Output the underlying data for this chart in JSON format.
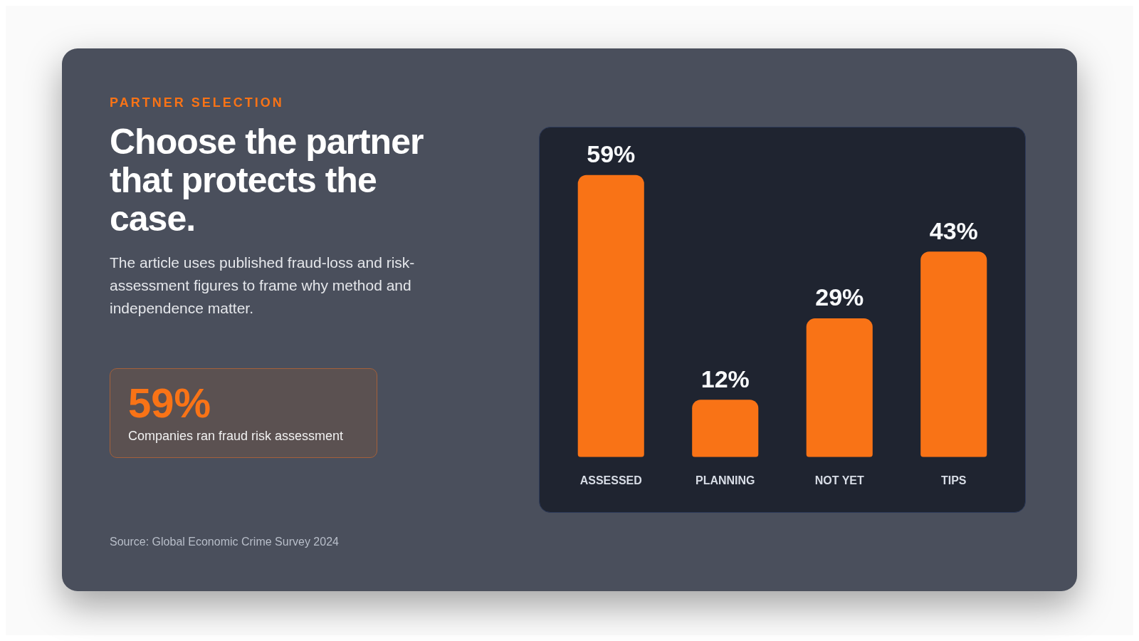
{
  "chart_data": {
    "type": "bar",
    "title": "Choose the partner that protects the case.",
    "subtitle": "The article uses published fraud-loss and risk-assessment figures to frame why method and independence matter.",
    "annotations": [
      "PARTNER SELECTION",
      "59%",
      "Companies ran fraud risk assessment",
      "Source: Global Economic Crime Survey 2024"
    ],
    "categories": [
      "ASSESSED",
      "PLANNING",
      "NOT YET",
      "TIPS"
    ],
    "values": [
      59,
      12,
      29,
      43
    ],
    "value_labels": [
      "59%",
      "12%",
      "29%",
      "43%"
    ],
    "color": "#f97316"
  }
}
